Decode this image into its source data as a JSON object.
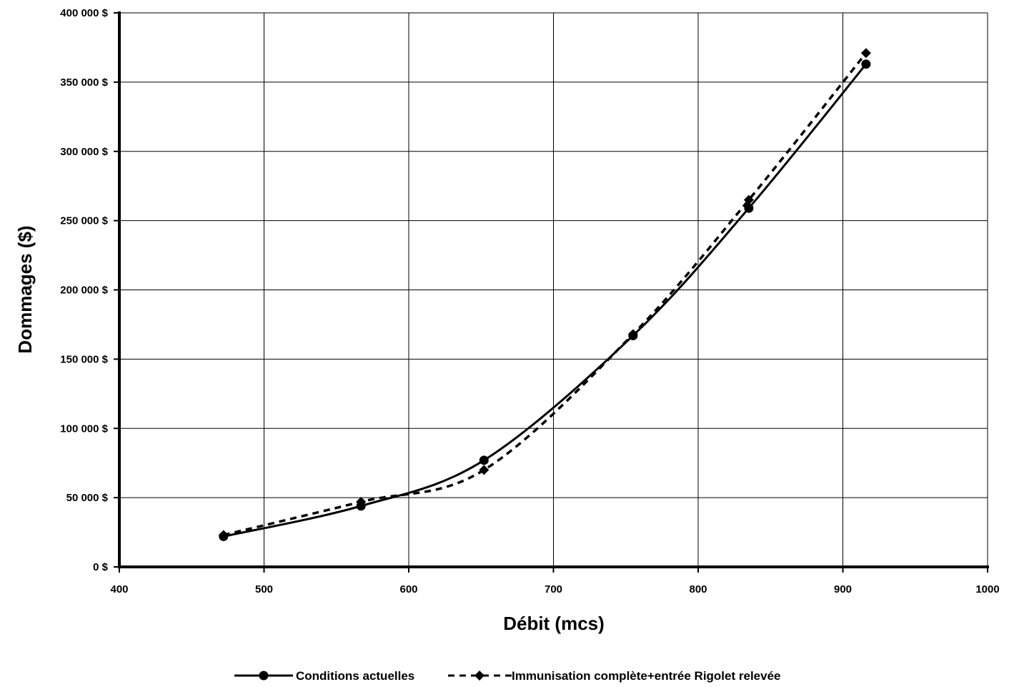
{
  "chart_data": {
    "type": "line",
    "title": "",
    "xlabel": "Débit (mcs)",
    "ylabel": "Dommages ($)",
    "xlim": [
      400,
      1000
    ],
    "ylim": [
      0,
      400000
    ],
    "x_ticks": [
      400,
      500,
      600,
      700,
      800,
      900,
      1000
    ],
    "x_tick_labels": [
      "400",
      "500",
      "600",
      "700",
      "800",
      "900",
      "1000"
    ],
    "y_ticks": [
      0,
      50000,
      100000,
      150000,
      200000,
      250000,
      300000,
      350000,
      400000
    ],
    "y_tick_labels": [
      "0 $",
      "50 000 $",
      "100 000 $",
      "150 000 $",
      "200 000 $",
      "250 000 $",
      "300 000 $",
      "350 000 $",
      "400 000 $"
    ],
    "grid": true,
    "legend_position": "bottom",
    "series": [
      {
        "name": "Conditions actuelles",
        "marker": "circle",
        "line_style": "solid",
        "color": "#000000",
        "x": [
          472,
          567,
          652,
          755,
          835,
          916
        ],
        "y": [
          22000,
          44000,
          77000,
          167000,
          259000,
          363000
        ]
      },
      {
        "name": "Immunisation complète+entrée Rigolet relevée",
        "marker": "diamond",
        "line_style": "dashed",
        "color": "#000000",
        "x": [
          472,
          567,
          652,
          755,
          835,
          916
        ],
        "y": [
          23000,
          47000,
          70000,
          168000,
          265000,
          371000
        ]
      }
    ]
  }
}
